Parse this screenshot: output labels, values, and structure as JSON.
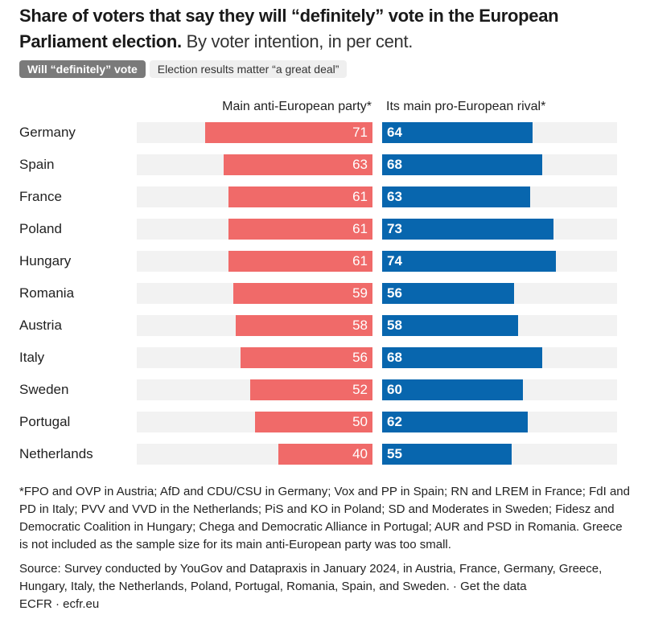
{
  "title": {
    "bold": "Share of voters that say they will “definitely” vote in the European Parliament election.",
    "subtitle": "By voter intention, in per cent."
  },
  "tabs": [
    {
      "label": "Will “definitely” vote",
      "active": true
    },
    {
      "label": "Election results matter “a great deal”",
      "active": false
    }
  ],
  "chart_data": {
    "type": "bar",
    "title": "Share of voters that say they will “definitely” vote in the European Parliament election. By voter intention, in per cent.",
    "orientation": "horizontal",
    "categories": [
      "Germany",
      "Spain",
      "France",
      "Poland",
      "Hungary",
      "Romania",
      "Austria",
      "Italy",
      "Sweden",
      "Portugal",
      "Netherlands"
    ],
    "series": [
      {
        "name": "Main anti-European party*",
        "color": "#f06a69",
        "values": [
          71,
          63,
          61,
          61,
          61,
          59,
          58,
          56,
          52,
          50,
          40
        ]
      },
      {
        "name": "Its main pro-European rival*",
        "color": "#0866ae",
        "values": [
          64,
          68,
          63,
          73,
          74,
          56,
          58,
          68,
          60,
          62,
          55
        ]
      }
    ],
    "xlim": [
      0,
      100
    ],
    "xlabel": "",
    "ylabel": "",
    "grid": false
  },
  "footnote": "*FPO and OVP in Austria; AfD and CDU/CSU in Germany; Vox and PP in Spain; RN and LREM in France; FdI and PD in Italy; PVV and VVD in the Netherlands; PiS and KO in Poland; SD and Moderates in Sweden; Fidesz and Democratic Coalition in Hungary; Chega and Democratic Alliance in Portugal; AUR and PSD in Romania. Greece is not included as the sample size for its main anti-European party was too small.",
  "source": "Source: Survey conducted by YouGov and Datapraxis in January 2024, in Austria, France, Germany, Greece, Hungary, Italy, the Netherlands, Poland, Portugal, Romania, Spain, and Sweden. · ",
  "get_data_label": "Get the data",
  "credit": "ECFR · ecfr.eu"
}
